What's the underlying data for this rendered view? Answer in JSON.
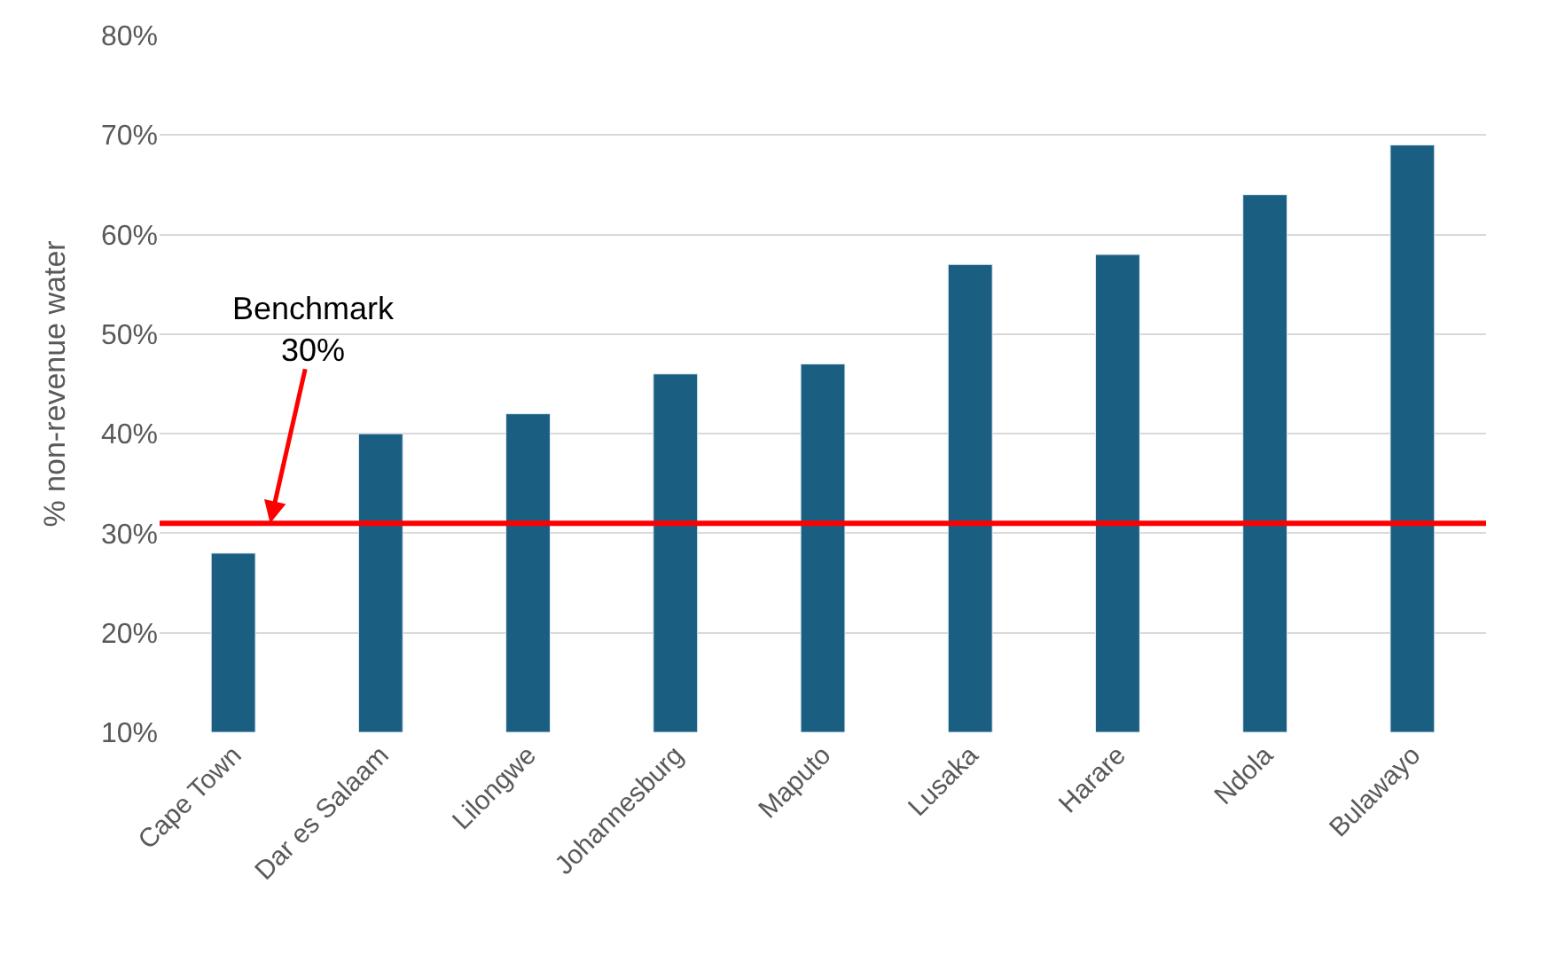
{
  "chart_data": {
    "type": "bar",
    "ylabel": "% non-revenue water",
    "categories": [
      "Cape Town",
      "Dar es Salaam",
      "Lilongwe",
      "Johannesburg",
      "Maputo",
      "Lusaka",
      "Harare",
      "Ndola",
      "Bulawayo"
    ],
    "values": [
      28,
      40,
      42,
      46,
      47,
      57,
      58,
      64,
      69
    ],
    "color": "#1a5f82",
    "ylim": [
      10,
      80
    ],
    "yticks": [
      {
        "value": 10,
        "label": "10%"
      },
      {
        "value": 20,
        "label": "20%"
      },
      {
        "value": 30,
        "label": "30%"
      },
      {
        "value": 40,
        "label": "40%"
      },
      {
        "value": 50,
        "label": "50%"
      },
      {
        "value": 60,
        "label": "60%"
      },
      {
        "value": 70,
        "label": "70%"
      },
      {
        "value": 80,
        "label": "80%"
      }
    ],
    "grid": "y",
    "ref_lines": [
      {
        "axis": "y",
        "value": 31,
        "label": "Benchmark\n30%",
        "color": "#ff0000",
        "line_style": "solid"
      }
    ]
  }
}
